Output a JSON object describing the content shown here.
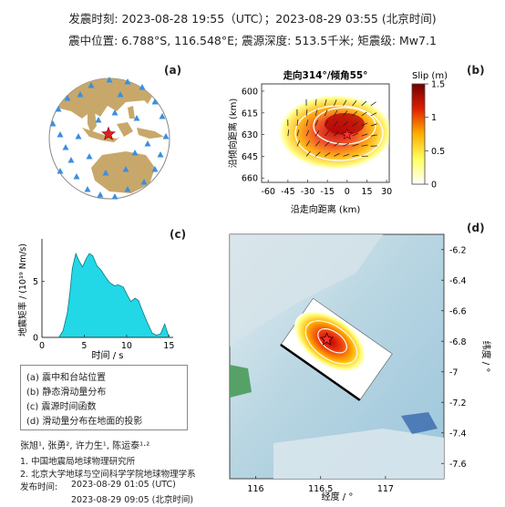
{
  "header": {
    "line1": "发震时刻: 2023-08-28 19:55（UTC）；2023-08-29  03:55 (北京时间)",
    "line2": "震中位置: 6.788°S,  116.548°E;  震源深度: 513.5千米; 矩震级: Mw7.1"
  },
  "panel_labels": {
    "a": "(a)",
    "b": "(b)",
    "c": "(c)",
    "d": "(d)"
  },
  "legend_items": [
    "(a) 震中和台站位置",
    "(b) 静态滑动量分布",
    "(c) 震源时间函数",
    "(d) 滑动量分布在地面的投影"
  ],
  "credits": {
    "authors": "张旭¹, 张勇², 许力生¹, 陈运泰¹·²",
    "aff1": "1. 中国地震局地球物理研究所",
    "aff2": "2. 北京大学地球与空间科学学院地球物理学系",
    "release_label": "发布时间:",
    "release_utc": "2023-08-29  01:05 (UTC)",
    "release_bj": "2023-08-29  09:05 (北京时间)"
  },
  "colors": {
    "ocean": "#ffffff",
    "land": "#c8a86a",
    "station": "#3a8fe0",
    "epicenter": "#e02020",
    "stf_fill": "#22d8e6",
    "slip_low": "#ffffe0",
    "slip_high": "#8b0000"
  },
  "chart_data": [
    {
      "type": "scatter",
      "panel": "a",
      "description_text": "",
      "epicenter": {
        "lon": 116.548,
        "lat": -6.788
      },
      "stations_count_visible": 33
    },
    {
      "type": "heatmap",
      "panel": "b",
      "title": "走向314°/倾角55°",
      "xlabel": "沿走向距离 (km)",
      "ylabel": "沿倾向距离 (km)",
      "xticks": [
        -60,
        -45,
        -30,
        -15,
        0,
        15,
        30
      ],
      "yticks": [
        600,
        615,
        630,
        645,
        660
      ],
      "xlim": [
        -65,
        32
      ],
      "ylim": [
        595,
        663
      ],
      "colorbar": {
        "label": "Slip (m)",
        "ticks": [
          0,
          0.5,
          1,
          1.5
        ],
        "range": [
          0,
          1.5
        ]
      },
      "peak": {
        "x": -8,
        "y": 627,
        "value": 1.5
      },
      "hypocenter": {
        "x": 0,
        "y": 630
      }
    },
    {
      "type": "area",
      "panel": "c",
      "title": "",
      "xlabel": "时间 / s",
      "ylabel": "地震矩率 / (10¹⁹ Nm/s)",
      "xticks": [
        0,
        5,
        10,
        15
      ],
      "yticks": [
        0,
        5
      ],
      "xlim": [
        0,
        15.5
      ],
      "ylim": [
        0,
        8.8
      ],
      "x": [
        0,
        1,
        2,
        2.5,
        3,
        3.3,
        3.6,
        4.0,
        4.4,
        4.8,
        5.2,
        5.6,
        6.0,
        6.5,
        7.0,
        7.5,
        8.0,
        8.6,
        9.0,
        9.6,
        10.0,
        10.5,
        11.0,
        11.4,
        11.8,
        12.4,
        13.0,
        13.5,
        14.0,
        14.5,
        15.0
      ],
      "y": [
        0,
        0,
        0,
        0.6,
        2.2,
        4.0,
        6.2,
        7.5,
        6.8,
        6.3,
        7.0,
        7.5,
        7.3,
        6.4,
        6.0,
        5.4,
        4.9,
        4.6,
        4.7,
        4.5,
        3.9,
        3.2,
        3.5,
        3.3,
        2.5,
        1.4,
        0.4,
        0.2,
        0.3,
        1.2,
        0.0
      ]
    },
    {
      "type": "heatmap",
      "panel": "d",
      "title": "",
      "xlabel": "经度 / °",
      "ylabel": "纬度 / °",
      "xticks": [
        116,
        116.5,
        117
      ],
      "yticks": [
        -6.2,
        -6.4,
        -6.6,
        -6.8,
        -7,
        -7.2,
        -7.4,
        -7.6
      ],
      "xlim": [
        115.8,
        117.45
      ],
      "ylim": [
        -7.7,
        -6.1
      ],
      "epicenter": {
        "lon": 116.548,
        "lat": -6.788
      }
    }
  ]
}
